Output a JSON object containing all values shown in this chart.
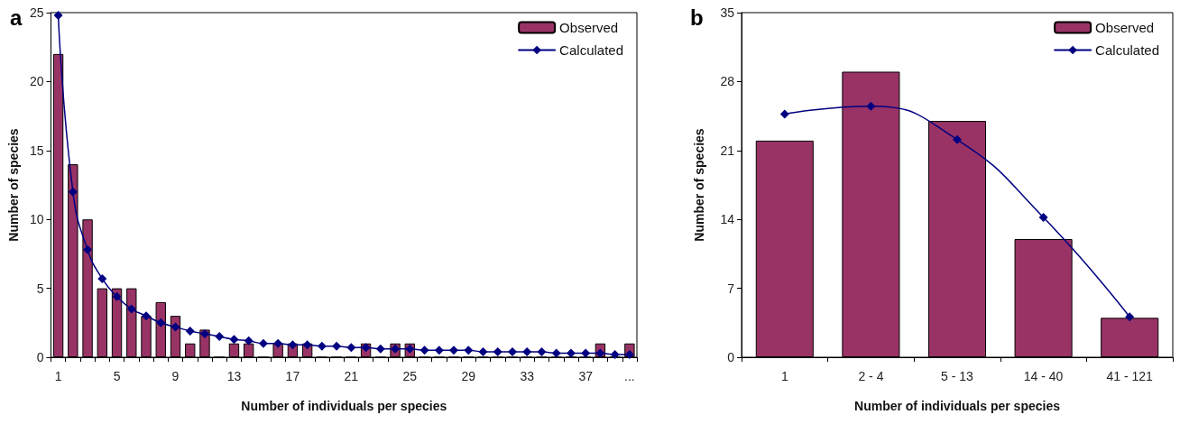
{
  "chart_data": [
    {
      "type": "bar",
      "title": "a",
      "xlabel": "Number of individuals per species",
      "ylabel": "Number of species",
      "categories": [
        "1",
        null,
        null,
        null,
        "5",
        null,
        null,
        null,
        "9",
        null,
        null,
        null,
        "13",
        null,
        null,
        null,
        "17",
        null,
        null,
        null,
        "21",
        null,
        null,
        null,
        "25",
        null,
        null,
        null,
        "29",
        null,
        null,
        null,
        "33",
        null,
        null,
        null,
        "37",
        null,
        null,
        "..."
      ],
      "ylim": [
        0,
        25
      ],
      "yticks": [
        0,
        5,
        10,
        15,
        20,
        25
      ],
      "grid": false,
      "legend": "top right",
      "marker": "diamond",
      "line_style": "solid",
      "series": [
        {
          "name": "Observed",
          "color": "#993366",
          "values": [
            22,
            14,
            10,
            5,
            5,
            5,
            3,
            4,
            3,
            1,
            2,
            0,
            1,
            1,
            0,
            1,
            1,
            1,
            0,
            0,
            0,
            1,
            0,
            1,
            1,
            0,
            0,
            0,
            0,
            0,
            0,
            0,
            0,
            0,
            0,
            0,
            0,
            1,
            0,
            1
          ]
        },
        {
          "name": "Calculated",
          "type": "line",
          "color": "#000080",
          "values": [
            24.8,
            12.0,
            7.8,
            5.7,
            4.4,
            3.5,
            3.0,
            2.5,
            2.2,
            1.9,
            1.7,
            1.5,
            1.3,
            1.2,
            1.0,
            1.0,
            0.9,
            0.9,
            0.8,
            0.8,
            0.7,
            0.7,
            0.6,
            0.6,
            0.6,
            0.5,
            0.5,
            0.5,
            0.5,
            0.4,
            0.4,
            0.4,
            0.4,
            0.4,
            0.3,
            0.3,
            0.3,
            0.3,
            0.2,
            0.2
          ]
        }
      ]
    },
    {
      "type": "bar",
      "title": "b",
      "xlabel": "Number of individuals per species",
      "ylabel": "Number of species",
      "categories": [
        "1",
        "2 - 4",
        "5 - 13",
        "14 - 40",
        "41 - 121"
      ],
      "ylim": [
        0,
        35
      ],
      "yticks": [
        0,
        7,
        14,
        21,
        28,
        35
      ],
      "grid": false,
      "legend": "top right",
      "marker": "diamond",
      "line_style": "solid",
      "series": [
        {
          "name": "Observed",
          "color": "#993366",
          "values": [
            22,
            29,
            24,
            12,
            4
          ]
        },
        {
          "name": "Calculated",
          "type": "line",
          "color": "#000080",
          "values": [
            24.7,
            25.5,
            22.1,
            14.2,
            4.1
          ]
        }
      ]
    }
  ]
}
